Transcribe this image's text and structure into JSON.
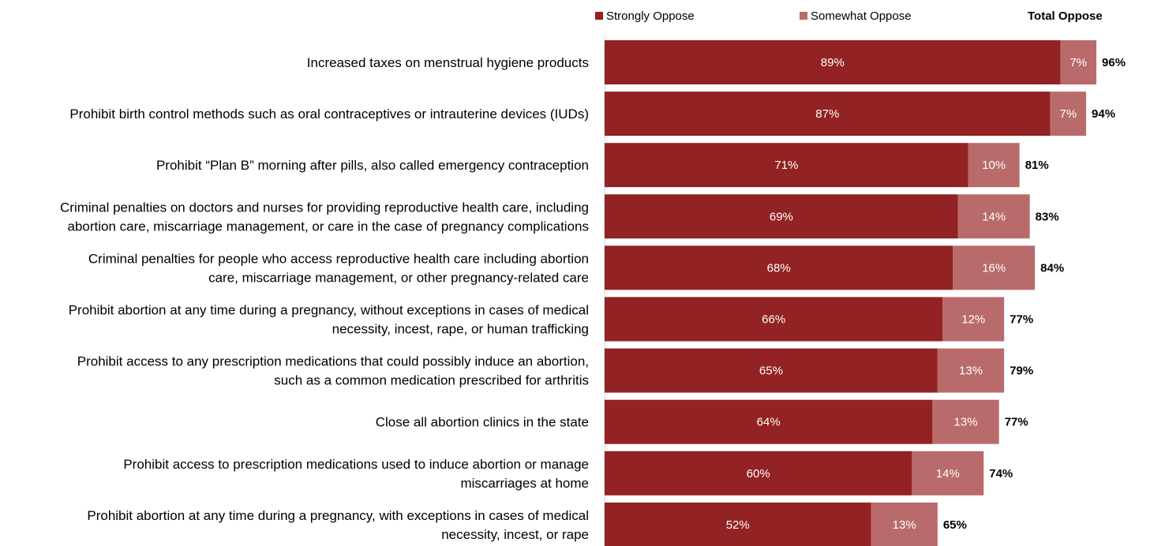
{
  "chart_data": {
    "type": "bar",
    "orientation": "horizontal",
    "stacked": true,
    "title": "",
    "xlabel": "",
    "ylabel": "",
    "xlim": [
      0,
      100
    ],
    "grid": false,
    "legend_position": "top",
    "legend_total_title": "Total Oppose",
    "categories": [
      [
        "Increased taxes on menstrual hygiene products"
      ],
      [
        "Prohibit birth control methods such as oral contraceptives or intrauterine devices (IUDs)"
      ],
      [
        "Prohibit “Plan B” morning after pills, also called emergency contraception"
      ],
      [
        "Criminal penalties on doctors and nurses for providing reproductive health care, including",
        "abortion care, miscarriage management, or care in the case of pregnancy complications"
      ],
      [
        "Criminal penalties for people who access reproductive health care including abortion",
        "care, miscarriage management, or other pregnancy-related care"
      ],
      [
        "Prohibit abortion at any time during a pregnancy, without exceptions in cases of medical",
        "necessity, incest, rape, or human trafficking"
      ],
      [
        "Prohibit access to any prescription medications that could possibly induce an abortion,",
        "such as a common medication prescribed for arthritis"
      ],
      [
        "Close all abortion clinics in the state"
      ],
      [
        "Prohibit access to prescription medications used to induce abortion or manage",
        "miscarriages at home"
      ],
      [
        "Prohibit abortion at any time during a pregnancy, with exceptions in cases of medical",
        "necessity, incest, or rape"
      ]
    ],
    "series": [
      {
        "name": "Strongly Oppose",
        "color": "#922223",
        "values": [
          89,
          87,
          71,
          69,
          68,
          66,
          65,
          64,
          60,
          52
        ],
        "labels": [
          "89%",
          "87%",
          "71%",
          "69%",
          "68%",
          "66%",
          "65%",
          "64%",
          "60%",
          "52%"
        ]
      },
      {
        "name": "Somewhat Oppose",
        "color": "#b96b6b",
        "values": [
          7,
          7,
          10,
          14,
          16,
          12,
          13,
          13,
          14,
          13
        ],
        "labels": [
          "7%",
          "7%",
          "10%",
          "14%",
          "16%",
          "12%",
          "13%",
          "13%",
          "14%",
          "13%"
        ]
      }
    ],
    "totals": [
      "96%",
      "94%",
      "81%",
      "83%",
      "84%",
      "77%",
      "79%",
      "77%",
      "74%",
      "65%"
    ]
  }
}
